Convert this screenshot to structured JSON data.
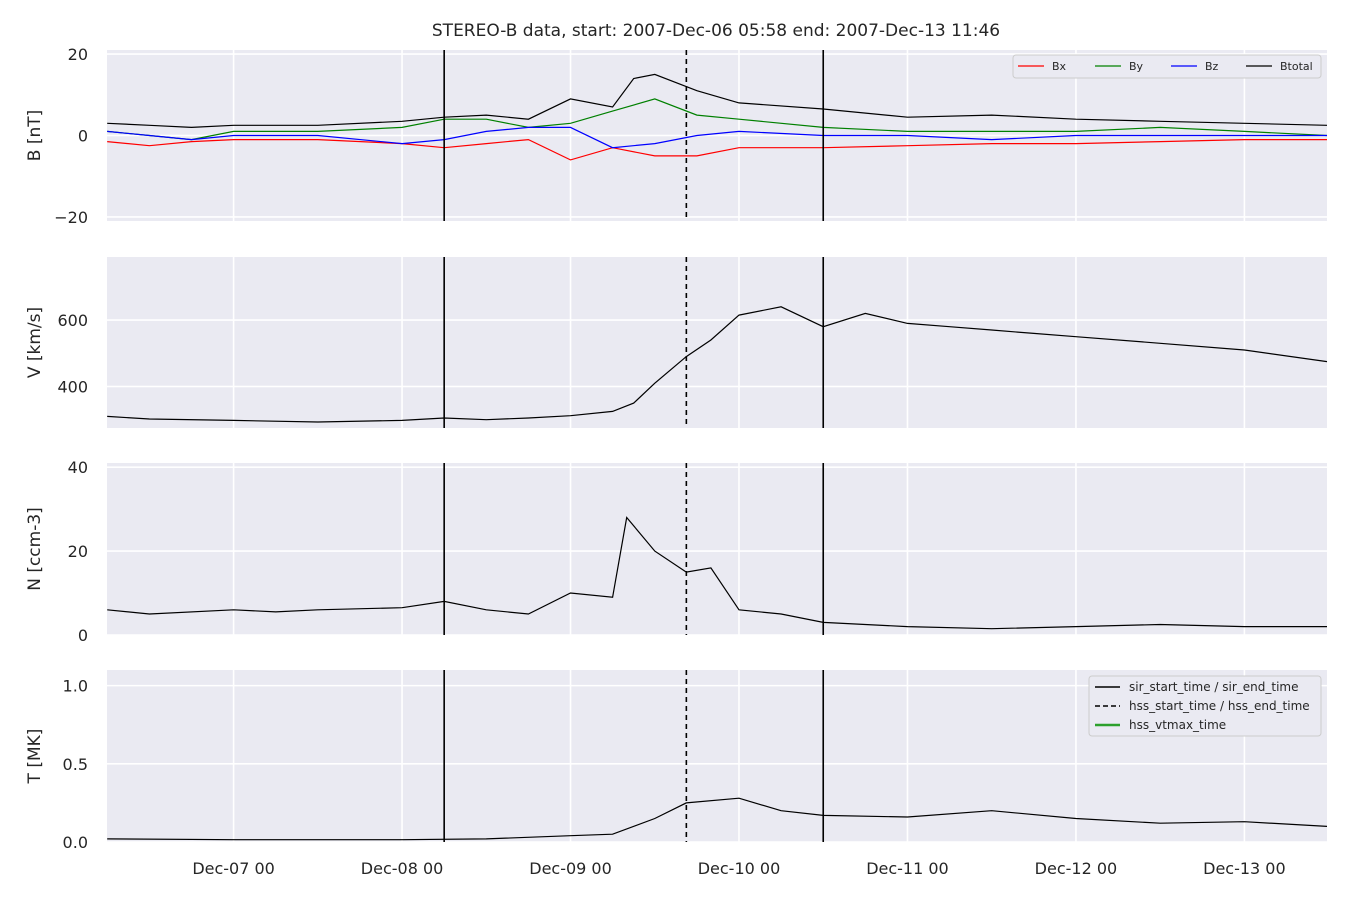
{
  "chart_data": {
    "type": "line",
    "title": "STEREO-B data, start: 2007-Dec-06 05:58  end: 2007-Dec-13 11:46",
    "x_range": [
      "2007-12-06 05:58",
      "2007-12-13 11:46"
    ],
    "x_tick_labels": [
      "Dec-07 00",
      "Dec-08 00",
      "Dec-09 00",
      "Dec-10 00",
      "Dec-11 00",
      "Dec-12 00",
      "Dec-13 00"
    ],
    "events": {
      "sir_start_time": "2007-12-08 06:00",
      "hss_start_time": "2007-12-09 16:30",
      "sir_end_time": "2007-12-10 12:00"
    },
    "grid": true,
    "background": "#eaeaf2",
    "panels": [
      {
        "ylabel": "B [nT]",
        "ylim": [
          -21,
          21
        ],
        "yticks": [
          -20,
          0,
          20
        ],
        "ytick_labels": [
          "−20",
          "0",
          "20"
        ],
        "legend": {
          "placement": "upper right",
          "entries": [
            "Bx",
            "By",
            "Bz",
            "Btotal"
          ]
        },
        "series": [
          {
            "name": "Bx",
            "color": "#ff0000",
            "points": [
              [
                "2007-12-06 06:00",
                -1.5
              ],
              [
                "2007-12-06 12:00",
                -2.5
              ],
              [
                "2007-12-06 18:00",
                -1.5
              ],
              [
                "2007-12-07 00:00",
                -1
              ],
              [
                "2007-12-07 12:00",
                -1
              ],
              [
                "2007-12-08 00:00",
                -2
              ],
              [
                "2007-12-08 06:00",
                -3
              ],
              [
                "2007-12-08 12:00",
                -2
              ],
              [
                "2007-12-08 18:00",
                -1
              ],
              [
                "2007-12-09 00:00",
                -6
              ],
              [
                "2007-12-09 06:00",
                -3
              ],
              [
                "2007-12-09 12:00",
                -5
              ],
              [
                "2007-12-09 18:00",
                -5
              ],
              [
                "2007-12-10 00:00",
                -3
              ],
              [
                "2007-12-10 12:00",
                -3
              ],
              [
                "2007-12-11 00:00",
                -2.5
              ],
              [
                "2007-12-11 12:00",
                -2
              ],
              [
                "2007-12-12 00:00",
                -2
              ],
              [
                "2007-12-12 12:00",
                -1.5
              ],
              [
                "2007-12-13 00:00",
                -1
              ],
              [
                "2007-12-13 11:46",
                -1
              ]
            ]
          },
          {
            "name": "By",
            "color": "#008000",
            "points": [
              [
                "2007-12-06 06:00",
                1
              ],
              [
                "2007-12-06 12:00",
                0
              ],
              [
                "2007-12-06 18:00",
                -1
              ],
              [
                "2007-12-07 00:00",
                1
              ],
              [
                "2007-12-07 12:00",
                1
              ],
              [
                "2007-12-08 00:00",
                2
              ],
              [
                "2007-12-08 06:00",
                4
              ],
              [
                "2007-12-08 12:00",
                4
              ],
              [
                "2007-12-08 18:00",
                2
              ],
              [
                "2007-12-09 00:00",
                3
              ],
              [
                "2007-12-09 06:00",
                6
              ],
              [
                "2007-12-09 12:00",
                9
              ],
              [
                "2007-12-09 18:00",
                5
              ],
              [
                "2007-12-10 00:00",
                4
              ],
              [
                "2007-12-10 12:00",
                2
              ],
              [
                "2007-12-11 00:00",
                1
              ],
              [
                "2007-12-11 12:00",
                1
              ],
              [
                "2007-12-12 00:00",
                1
              ],
              [
                "2007-12-12 12:00",
                2
              ],
              [
                "2007-12-13 00:00",
                1
              ],
              [
                "2007-12-13 11:46",
                0
              ]
            ]
          },
          {
            "name": "Bz",
            "color": "#0000ff",
            "points": [
              [
                "2007-12-06 06:00",
                1
              ],
              [
                "2007-12-06 12:00",
                0
              ],
              [
                "2007-12-06 18:00",
                -1
              ],
              [
                "2007-12-07 00:00",
                0
              ],
              [
                "2007-12-07 12:00",
                0
              ],
              [
                "2007-12-08 00:00",
                -2
              ],
              [
                "2007-12-08 06:00",
                -1
              ],
              [
                "2007-12-08 12:00",
                1
              ],
              [
                "2007-12-08 18:00",
                2
              ],
              [
                "2007-12-09 00:00",
                2
              ],
              [
                "2007-12-09 06:00",
                -3
              ],
              [
                "2007-12-09 12:00",
                -2
              ],
              [
                "2007-12-09 18:00",
                0
              ],
              [
                "2007-12-10 00:00",
                1
              ],
              [
                "2007-12-10 12:00",
                0
              ],
              [
                "2007-12-11 00:00",
                0
              ],
              [
                "2007-12-11 12:00",
                -1
              ],
              [
                "2007-12-12 00:00",
                0
              ],
              [
                "2007-12-12 12:00",
                0
              ],
              [
                "2007-12-13 00:00",
                0
              ],
              [
                "2007-12-13 11:46",
                0
              ]
            ]
          },
          {
            "name": "Btotal",
            "color": "#000000",
            "points": [
              [
                "2007-12-06 06:00",
                3
              ],
              [
                "2007-12-06 12:00",
                2.5
              ],
              [
                "2007-12-06 18:00",
                2
              ],
              [
                "2007-12-07 00:00",
                2.5
              ],
              [
                "2007-12-07 12:00",
                2.5
              ],
              [
                "2007-12-08 00:00",
                3.5
              ],
              [
                "2007-12-08 06:00",
                4.5
              ],
              [
                "2007-12-08 12:00",
                5
              ],
              [
                "2007-12-08 18:00",
                4
              ],
              [
                "2007-12-09 00:00",
                9
              ],
              [
                "2007-12-09 06:00",
                7
              ],
              [
                "2007-12-09 09:00",
                14
              ],
              [
                "2007-12-09 12:00",
                15
              ],
              [
                "2007-12-09 18:00",
                11
              ],
              [
                "2007-12-10 00:00",
                8
              ],
              [
                "2007-12-10 12:00",
                6.5
              ],
              [
                "2007-12-11 00:00",
                4.5
              ],
              [
                "2007-12-11 12:00",
                5
              ],
              [
                "2007-12-12 00:00",
                4
              ],
              [
                "2007-12-12 12:00",
                3.5
              ],
              [
                "2007-12-13 00:00",
                3
              ],
              [
                "2007-12-13 11:46",
                2.5
              ]
            ]
          }
        ]
      },
      {
        "ylabel": "V [km/s]",
        "ylim": [
          275,
          790
        ],
        "yticks": [
          400,
          600
        ],
        "ytick_labels": [
          "400",
          "600"
        ],
        "series": [
          {
            "name": "",
            "color": "#000000",
            "points": [
              [
                "2007-12-06 06:00",
                310
              ],
              [
                "2007-12-06 12:00",
                302
              ],
              [
                "2007-12-07 00:00",
                298
              ],
              [
                "2007-12-07 12:00",
                293
              ],
              [
                "2007-12-08 00:00",
                298
              ],
              [
                "2007-12-08 06:00",
                305
              ],
              [
                "2007-12-08 12:00",
                300
              ],
              [
                "2007-12-08 18:00",
                305
              ],
              [
                "2007-12-09 00:00",
                312
              ],
              [
                "2007-12-09 06:00",
                325
              ],
              [
                "2007-12-09 09:00",
                350
              ],
              [
                "2007-12-09 12:00",
                410
              ],
              [
                "2007-12-09 16:30",
                490
              ],
              [
                "2007-12-09 20:00",
                540
              ],
              [
                "2007-12-10 00:00",
                615
              ],
              [
                "2007-12-10 06:00",
                640
              ],
              [
                "2007-12-10 12:00",
                580
              ],
              [
                "2007-12-10 18:00",
                620
              ],
              [
                "2007-12-11 00:00",
                590
              ],
              [
                "2007-12-11 06:00",
                580
              ],
              [
                "2007-12-11 12:00",
                570
              ],
              [
                "2007-12-11 18:00",
                560
              ],
              [
                "2007-12-12 00:00",
                550
              ],
              [
                "2007-12-12 12:00",
                530
              ],
              [
                "2007-12-13 00:00",
                510
              ],
              [
                "2007-12-13 11:46",
                475
              ]
            ]
          }
        ]
      },
      {
        "ylabel": "N [ccm-3]",
        "ylim": [
          0,
          41
        ],
        "yticks": [
          0,
          20,
          40
        ],
        "ytick_labels": [
          "0",
          "20",
          "40"
        ],
        "series": [
          {
            "name": "",
            "color": "#000000",
            "points": [
              [
                "2007-12-06 06:00",
                6
              ],
              [
                "2007-12-06 12:00",
                5
              ],
              [
                "2007-12-07 00:00",
                6
              ],
              [
                "2007-12-07 06:00",
                5.5
              ],
              [
                "2007-12-07 12:00",
                6
              ],
              [
                "2007-12-08 00:00",
                6.5
              ],
              [
                "2007-12-08 06:00",
                8
              ],
              [
                "2007-12-08 12:00",
                6
              ],
              [
                "2007-12-08 18:00",
                5
              ],
              [
                "2007-12-09 00:00",
                10
              ],
              [
                "2007-12-09 06:00",
                9
              ],
              [
                "2007-12-09 08:00",
                28
              ],
              [
                "2007-12-09 12:00",
                20
              ],
              [
                "2007-12-09 16:30",
                15
              ],
              [
                "2007-12-09 20:00",
                16
              ],
              [
                "2007-12-10 00:00",
                6
              ],
              [
                "2007-12-10 06:00",
                5
              ],
              [
                "2007-12-10 12:00",
                3
              ],
              [
                "2007-12-11 00:00",
                2
              ],
              [
                "2007-12-11 12:00",
                1.5
              ],
              [
                "2007-12-12 00:00",
                2
              ],
              [
                "2007-12-12 12:00",
                2.5
              ],
              [
                "2007-12-13 00:00",
                2
              ],
              [
                "2007-12-13 11:46",
                2
              ]
            ]
          }
        ]
      },
      {
        "ylabel": "T [MK]",
        "ylim": [
          0,
          1.1
        ],
        "yticks": [
          0.0,
          0.5,
          1.0
        ],
        "ytick_labels": [
          "0.0",
          "0.5",
          "1.0"
        ],
        "legend": {
          "placement": "upper right",
          "entries": [
            "sir_start_time / sir_end_time",
            "hss_start_time / hss_end_time",
            "hss_vtmax_time"
          ]
        },
        "series": [
          {
            "name": "",
            "color": "#000000",
            "points": [
              [
                "2007-12-06 06:00",
                0.02
              ],
              [
                "2007-12-07 00:00",
                0.015
              ],
              [
                "2007-12-08 00:00",
                0.015
              ],
              [
                "2007-12-08 12:00",
                0.02
              ],
              [
                "2007-12-09 00:00",
                0.04
              ],
              [
                "2007-12-09 06:00",
                0.05
              ],
              [
                "2007-12-09 12:00",
                0.15
              ],
              [
                "2007-12-09 16:30",
                0.25
              ],
              [
                "2007-12-10 00:00",
                0.28
              ],
              [
                "2007-12-10 06:00",
                0.2
              ],
              [
                "2007-12-10 12:00",
                0.17
              ],
              [
                "2007-12-11 00:00",
                0.16
              ],
              [
                "2007-12-11 12:00",
                0.2
              ],
              [
                "2007-12-12 00:00",
                0.15
              ],
              [
                "2007-12-12 12:00",
                0.12
              ],
              [
                "2007-12-13 00:00",
                0.13
              ],
              [
                "2007-12-13 11:46",
                0.1
              ]
            ]
          }
        ]
      }
    ]
  }
}
